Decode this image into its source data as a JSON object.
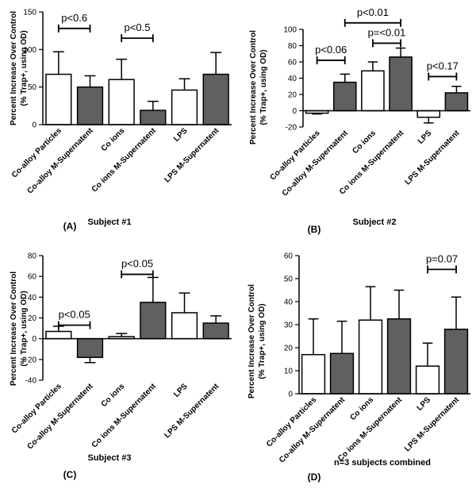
{
  "figure": {
    "categories": [
      "Co-alloy Particles",
      "Co-alloy M-Supernatent",
      "Co ions",
      "Co ions M-Supernatent",
      "LPS",
      "LPS M-Supernatent"
    ],
    "bar_colors": [
      "#ffffff",
      "#606060",
      "#ffffff",
      "#606060",
      "#ffffff",
      "#606060"
    ]
  },
  "chart_data": [
    {
      "type": "bar",
      "panel_letter": "(A)",
      "caption": "Subject #1",
      "ylabel_lines": [
        "Percent Increase Over Control",
        "(% Trap+, using OD)"
      ],
      "categories": [
        "Co-alloy Particles",
        "Co-alloy M-Supernatent",
        "Co ions",
        "Co ions M-Supernatent",
        "LPS",
        "LPS M-Supernatent"
      ],
      "values": [
        67,
        50,
        60,
        19,
        46,
        67
      ],
      "errors": [
        30,
        15,
        27,
        12,
        15,
        29
      ],
      "ylim": [
        0,
        150
      ],
      "yticks": [
        0,
        50,
        100,
        150
      ],
      "comparisons": [
        {
          "from": 0,
          "to": 1,
          "y": 128,
          "label": "p<0.6"
        },
        {
          "from": 2,
          "to": 3,
          "y": 115,
          "label": "p<0.5"
        }
      ]
    },
    {
      "type": "bar",
      "panel_letter": "(B)",
      "caption": "Subject #2",
      "ylabel_lines": [
        "Percent Increase Over Control",
        "(% Trap+, using OD)"
      ],
      "categories": [
        "Co-alloy Particles",
        "Co-alloy M-Supernatent",
        "Co ions",
        "Co ions M-Supernatent",
        "LPS",
        "LPS M-Supernatent"
      ],
      "values": [
        -3,
        35,
        49,
        66,
        -8,
        22
      ],
      "errors": [
        1,
        10,
        11,
        11,
        7,
        8
      ],
      "ylim": [
        -20,
        100
      ],
      "yticks": [
        -20,
        0,
        20,
        40,
        60,
        80,
        100
      ],
      "comparisons": [
        {
          "from": 1,
          "to": 3,
          "y": 108,
          "label": "p<0.01"
        },
        {
          "from": 0,
          "to": 1,
          "y": 62,
          "label": "p<0.06"
        },
        {
          "from": 2,
          "to": 3,
          "y": 83,
          "label": "p=<0.01"
        },
        {
          "from": 4,
          "to": 5,
          "y": 42,
          "label": "p<0.17"
        }
      ]
    },
    {
      "type": "bar",
      "panel_letter": "(C)",
      "caption": "Subject #3",
      "ylabel_lines": [
        "Percent Increase Over Control",
        "(% Trap+, using OD)"
      ],
      "categories": [
        "Co-alloy Particles",
        "Co-alloy M-Supernatent",
        "Co ions",
        "Co ions M-Supernatent",
        "LPS",
        "LPS M-Supernatent"
      ],
      "values": [
        7,
        -18,
        2,
        35,
        25,
        15
      ],
      "errors": [
        5,
        5,
        3,
        24,
        19,
        7
      ],
      "ylim": [
        -40,
        80
      ],
      "yticks": [
        -40,
        -20,
        0,
        20,
        40,
        60,
        80
      ],
      "comparisons": [
        {
          "from": 0,
          "to": 1,
          "y": 13,
          "label": "p<0.05"
        },
        {
          "from": 2,
          "to": 3,
          "y": 62,
          "label": "p<0.05"
        }
      ]
    },
    {
      "type": "bar",
      "panel_letter": "(D)",
      "caption": "n=3 subjects combined",
      "ylabel_lines": [
        "Percent Increase Over Control",
        "(% Trap+, using OD)"
      ],
      "categories": [
        "Co-alloy Particles",
        "Co-alloy M-Supernatent",
        "Co ions",
        "Co ions M-Supernatent",
        "LPS",
        "LPS M-Supernatent"
      ],
      "values": [
        17,
        17.5,
        32,
        32.5,
        12,
        28
      ],
      "errors": [
        15.5,
        14,
        14.5,
        12.5,
        10,
        14
      ],
      "ylim": [
        0,
        60
      ],
      "yticks": [
        0,
        10,
        20,
        30,
        40,
        50,
        60
      ],
      "comparisons": [
        {
          "from": 4,
          "to": 5,
          "y": 54,
          "label": "p=0.07"
        }
      ]
    }
  ]
}
